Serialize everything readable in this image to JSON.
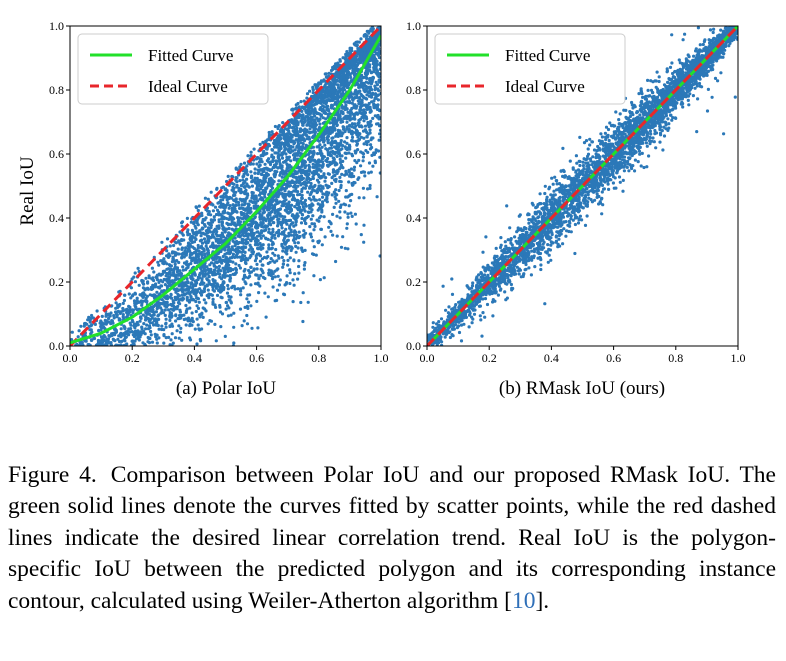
{
  "chart_data": [
    {
      "type": "scatter",
      "panel": "a",
      "subcaption": "(a) Polar IoU",
      "ylabel": "Real IoU",
      "xlabel": "",
      "xlim": [
        0.0,
        1.0
      ],
      "ylim": [
        0.0,
        1.0
      ],
      "x_ticks": [
        "0.0",
        "0.2",
        "0.4",
        "0.6",
        "0.8",
        "1.0"
      ],
      "y_ticks": [
        "0.0",
        "0.2",
        "0.4",
        "0.6",
        "0.8",
        "1.0"
      ],
      "grid": false,
      "legend_position": "top-left",
      "legend": [
        {
          "label": "Fitted Curve",
          "style": "solid",
          "color": "#22e02a"
        },
        {
          "label": "Ideal Curve",
          "style": "dashed",
          "color": "#e8262b"
        }
      ],
      "scatter_color": "#2b78b8",
      "scatter_relation": "Real IoU mostly below Polar IoU, spread widening at higher values",
      "fitted_curve": {
        "x": [
          0.0,
          0.1,
          0.2,
          0.3,
          0.4,
          0.5,
          0.6,
          0.7,
          0.8,
          0.9,
          1.0
        ],
        "y": [
          0.01,
          0.04,
          0.09,
          0.16,
          0.24,
          0.32,
          0.42,
          0.53,
          0.66,
          0.8,
          0.97
        ]
      },
      "ideal_curve": {
        "x": [
          0.0,
          1.0
        ],
        "y": [
          0.0,
          1.0
        ]
      }
    },
    {
      "type": "scatter",
      "panel": "b",
      "subcaption": "(b) RMask IoU (ours)",
      "ylabel": "",
      "xlabel": "",
      "xlim": [
        0.0,
        1.0
      ],
      "ylim": [
        0.0,
        1.0
      ],
      "x_ticks": [
        "0.0",
        "0.2",
        "0.4",
        "0.6",
        "0.8",
        "1.0"
      ],
      "y_ticks": [
        "0.0",
        "0.2",
        "0.4",
        "0.6",
        "0.8",
        "1.0"
      ],
      "grid": false,
      "legend_position": "top-left",
      "legend": [
        {
          "label": "Fitted Curve",
          "style": "solid",
          "color": "#22e02a"
        },
        {
          "label": "Ideal Curve",
          "style": "dashed",
          "color": "#e8262b"
        }
      ],
      "scatter_color": "#2b78b8",
      "scatter_relation": "Real IoU tightly around RMask IoU along the diagonal",
      "fitted_curve": {
        "x": [
          0.0,
          1.0
        ],
        "y": [
          0.0,
          1.0
        ]
      },
      "ideal_curve": {
        "x": [
          0.0,
          1.0
        ],
        "y": [
          0.0,
          1.0
        ]
      }
    }
  ],
  "caption": {
    "label": "Figure 4.",
    "text_before_ref": "Comparison between Polar IoU and our proposed RMask IoU. The green solid lines denote the curves fitted by scatter points, while the red dashed lines indicate the desired linear correlation trend. Real IoU is the polygon-specific IoU between the predicted polygon and its corresponding instance contour, calculated using Weiler-Atherton algorithm [",
    "ref": "10",
    "text_after_ref": "]."
  }
}
